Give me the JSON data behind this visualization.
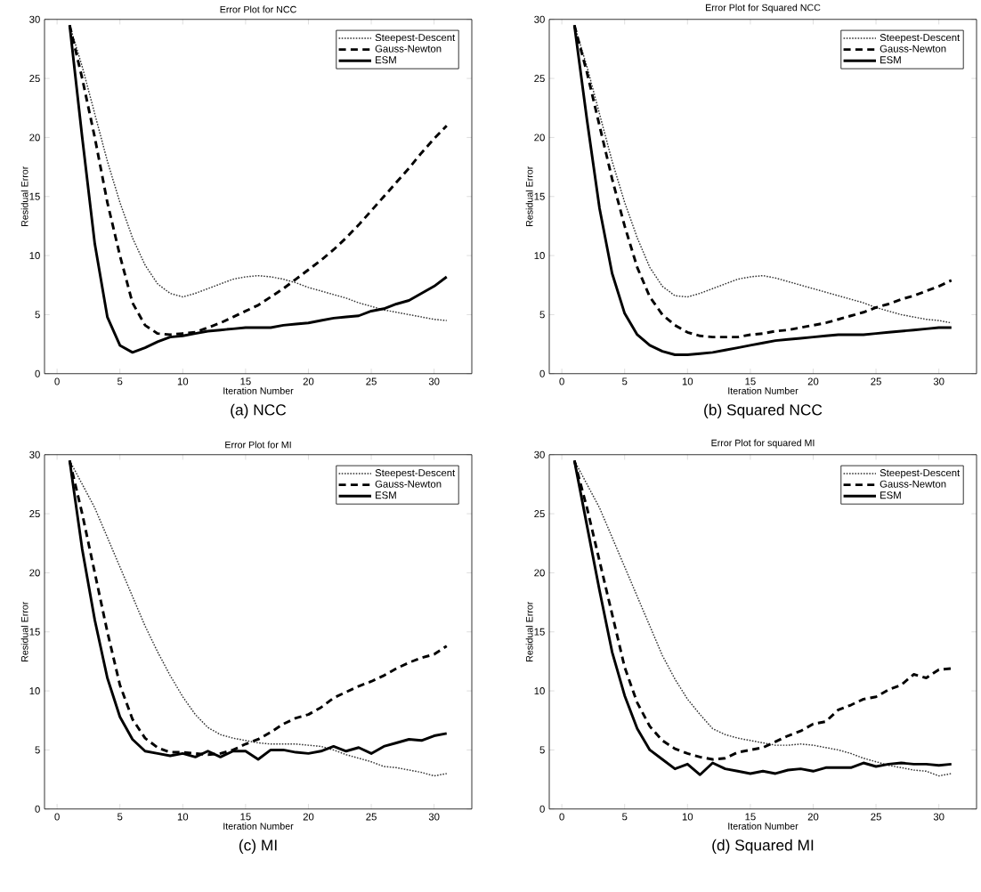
{
  "chart_data": [
    {
      "type": "line",
      "title": "Error Plot for NCC",
      "xlabel": "Iteration Number",
      "ylabel": "Residual Error",
      "annotations": [
        "(a) NCC"
      ],
      "x": [
        1,
        2,
        3,
        4,
        5,
        6,
        7,
        8,
        9,
        10,
        11,
        12,
        13,
        14,
        15,
        16,
        17,
        18,
        19,
        20,
        21,
        22,
        23,
        24,
        25,
        26,
        27,
        28,
        29,
        30,
        31
      ],
      "xlim": [
        -1,
        33
      ],
      "ylim": [
        0,
        30
      ],
      "xticks": [
        0,
        5,
        10,
        15,
        20,
        25,
        30
      ],
      "yticks": [
        0,
        5,
        10,
        15,
        20,
        25,
        30
      ],
      "legend": "top right",
      "grid": false,
      "marker": "none",
      "series": [
        {
          "name": "Steepest-Descent",
          "color": "#333333",
          "line_style": "dotted",
          "values": [
            29.5,
            26,
            22,
            18,
            14.5,
            11.5,
            9.2,
            7.6,
            6.8,
            6.5,
            6.8,
            7.2,
            7.6,
            8.0,
            8.2,
            8.3,
            8.2,
            8.0,
            7.7,
            7.3,
            7.0,
            6.7,
            6.4,
            6.0,
            5.7,
            5.4,
            5.2,
            5.0,
            4.8,
            4.6,
            4.5
          ]
        },
        {
          "name": "Gauss-Newton",
          "color": "#000000",
          "line_style": "dashed",
          "values": [
            29.5,
            25,
            20,
            14.5,
            10,
            6.0,
            4.1,
            3.4,
            3.3,
            3.4,
            3.5,
            3.9,
            4.3,
            4.8,
            5.3,
            5.8,
            6.5,
            7.2,
            8.0,
            8.8,
            9.6,
            10.5,
            11.5,
            12.6,
            13.8,
            15.0,
            16.2,
            17.4,
            18.7,
            19.9,
            21.0
          ]
        },
        {
          "name": "ESM",
          "color": "#000000",
          "line_style": "solid",
          "values": [
            29.5,
            20,
            11,
            4.8,
            2.4,
            1.8,
            2.2,
            2.7,
            3.1,
            3.2,
            3.4,
            3.6,
            3.7,
            3.8,
            3.9,
            3.9,
            3.9,
            4.1,
            4.2,
            4.3,
            4.5,
            4.7,
            4.8,
            4.9,
            5.3,
            5.5,
            5.9,
            6.2,
            6.8,
            7.4,
            8.2
          ]
        }
      ]
    },
    {
      "type": "line",
      "title": "Error Plot for Squared NCC",
      "xlabel": "Iteration Number",
      "ylabel": "Residual Error",
      "annotations": [
        "(b) Squared NCC"
      ],
      "x": [
        1,
        2,
        3,
        4,
        5,
        6,
        7,
        8,
        9,
        10,
        11,
        12,
        13,
        14,
        15,
        16,
        17,
        18,
        19,
        20,
        21,
        22,
        23,
        24,
        25,
        26,
        27,
        28,
        29,
        30,
        31
      ],
      "xlim": [
        -1,
        33
      ],
      "ylim": [
        0,
        30
      ],
      "xticks": [
        0,
        5,
        10,
        15,
        20,
        25,
        30
      ],
      "yticks": [
        0,
        5,
        10,
        15,
        20,
        25,
        30
      ],
      "legend": "top right",
      "grid": false,
      "marker": "none",
      "series": [
        {
          "name": "Steepest-Descent",
          "color": "#333333",
          "line_style": "dotted",
          "values": [
            29.5,
            26,
            22,
            18,
            14.5,
            11.5,
            9.0,
            7.4,
            6.6,
            6.5,
            6.8,
            7.2,
            7.6,
            8.0,
            8.2,
            8.3,
            8.1,
            7.8,
            7.5,
            7.2,
            6.9,
            6.6,
            6.3,
            6.0,
            5.6,
            5.3,
            5.0,
            4.8,
            4.6,
            4.5,
            4.3
          ]
        },
        {
          "name": "Gauss-Newton",
          "color": "#000000",
          "line_style": "dashed",
          "values": [
            29.5,
            25.5,
            21,
            16.5,
            12.5,
            9,
            6.5,
            5.0,
            4.1,
            3.5,
            3.2,
            3.1,
            3.1,
            3.1,
            3.3,
            3.4,
            3.6,
            3.7,
            3.9,
            4.1,
            4.3,
            4.6,
            4.9,
            5.2,
            5.6,
            5.9,
            6.3,
            6.6,
            7.0,
            7.4,
            7.9
          ]
        },
        {
          "name": "ESM",
          "color": "#000000",
          "line_style": "solid",
          "values": [
            29.5,
            21.5,
            14,
            8.5,
            5.1,
            3.3,
            2.4,
            1.9,
            1.6,
            1.6,
            1.7,
            1.8,
            2.0,
            2.2,
            2.4,
            2.6,
            2.8,
            2.9,
            3.0,
            3.1,
            3.2,
            3.3,
            3.3,
            3.3,
            3.4,
            3.5,
            3.6,
            3.7,
            3.8,
            3.9,
            3.9
          ]
        }
      ]
    },
    {
      "type": "line",
      "title": "Error Plot for MI",
      "xlabel": "Iteration Number",
      "ylabel": "Residual Error",
      "annotations": [
        "(c) MI"
      ],
      "x": [
        1,
        2,
        3,
        4,
        5,
        6,
        7,
        8,
        9,
        10,
        11,
        12,
        13,
        14,
        15,
        16,
        17,
        18,
        19,
        20,
        21,
        22,
        23,
        24,
        25,
        26,
        27,
        28,
        29,
        30,
        31
      ],
      "xlim": [
        -1,
        33
      ],
      "ylim": [
        0,
        30
      ],
      "xticks": [
        0,
        5,
        10,
        15,
        20,
        25,
        30
      ],
      "yticks": [
        0,
        5,
        10,
        15,
        20,
        25,
        30
      ],
      "legend": "top right",
      "grid": false,
      "marker": "none",
      "series": [
        {
          "name": "Steepest-Descent",
          "color": "#333333",
          "line_style": "dotted",
          "values": [
            29.5,
            27.5,
            25.5,
            23,
            20.5,
            18,
            15.5,
            13.3,
            11.3,
            9.5,
            8.0,
            6.9,
            6.3,
            6.0,
            5.8,
            5.6,
            5.5,
            5.5,
            5.5,
            5.4,
            5.3,
            5.0,
            4.6,
            4.3,
            4.0,
            3.6,
            3.5,
            3.3,
            3.1,
            2.8,
            3.0
          ]
        },
        {
          "name": "Gauss-Newton",
          "color": "#000000",
          "line_style": "dashed",
          "values": [
            29.5,
            25,
            20,
            15,
            10.5,
            7.6,
            6.0,
            5.2,
            4.8,
            4.8,
            4.7,
            4.6,
            4.7,
            5.0,
            5.5,
            5.9,
            6.5,
            7.2,
            7.7,
            8.0,
            8.6,
            9.4,
            9.9,
            10.4,
            10.8,
            11.3,
            11.9,
            12.4,
            12.8,
            13.1,
            13.8
          ]
        },
        {
          "name": "ESM",
          "color": "#000000",
          "line_style": "solid",
          "values": [
            29.5,
            22,
            16,
            11.1,
            7.8,
            5.9,
            4.9,
            4.7,
            4.5,
            4.7,
            4.4,
            4.9,
            4.4,
            4.9,
            4.9,
            4.2,
            5.0,
            5.0,
            4.8,
            4.7,
            4.9,
            5.3,
            4.9,
            5.2,
            4.7,
            5.3,
            5.6,
            5.9,
            5.8,
            6.2,
            6.4
          ]
        }
      ]
    },
    {
      "type": "line",
      "title": "Error Plot for squared MI",
      "xlabel": "Iteration Number",
      "ylabel": "Residual Error",
      "annotations": [
        "(d) Squared MI"
      ],
      "x": [
        1,
        2,
        3,
        4,
        5,
        6,
        7,
        8,
        9,
        10,
        11,
        12,
        13,
        14,
        15,
        16,
        17,
        18,
        19,
        20,
        21,
        22,
        23,
        24,
        25,
        26,
        27,
        28,
        29,
        30,
        31
      ],
      "xlim": [
        -1,
        33
      ],
      "ylim": [
        0,
        30
      ],
      "xticks": [
        0,
        5,
        10,
        15,
        20,
        25,
        30
      ],
      "yticks": [
        0,
        5,
        10,
        15,
        20,
        25,
        30
      ],
      "legend": "top right",
      "grid": false,
      "marker": "none",
      "series": [
        {
          "name": "Steepest-Descent",
          "color": "#333333",
          "line_style": "dotted",
          "values": [
            29.5,
            27.5,
            25.5,
            23,
            20.5,
            18,
            15.5,
            13,
            11,
            9.3,
            8.0,
            6.8,
            6.3,
            6.0,
            5.8,
            5.6,
            5.4,
            5.4,
            5.5,
            5.4,
            5.2,
            5.0,
            4.7,
            4.3,
            4.0,
            3.7,
            3.5,
            3.3,
            3.2,
            2.8,
            3.0
          ]
        },
        {
          "name": "Gauss-Newton",
          "color": "#000000",
          "line_style": "dashed",
          "values": [
            29.5,
            25.5,
            21,
            16.5,
            12,
            9,
            7,
            5.8,
            5.1,
            4.7,
            4.4,
            4.2,
            4.3,
            4.8,
            5.0,
            5.2,
            5.7,
            6.2,
            6.6,
            7.2,
            7.4,
            8.4,
            8.8,
            9.3,
            9.5,
            10.1,
            10.5,
            11.4,
            11.1,
            11.8,
            11.9
          ]
        },
        {
          "name": "ESM",
          "color": "#000000",
          "line_style": "solid",
          "values": [
            29.5,
            24,
            18.5,
            13.3,
            9.6,
            6.8,
            5.0,
            4.2,
            3.4,
            3.8,
            2.9,
            3.9,
            3.4,
            3.2,
            3.0,
            3.2,
            3.0,
            3.3,
            3.4,
            3.2,
            3.5,
            3.5,
            3.5,
            3.9,
            3.6,
            3.8,
            3.9,
            3.8,
            3.8,
            3.7,
            3.8
          ]
        }
      ]
    }
  ]
}
